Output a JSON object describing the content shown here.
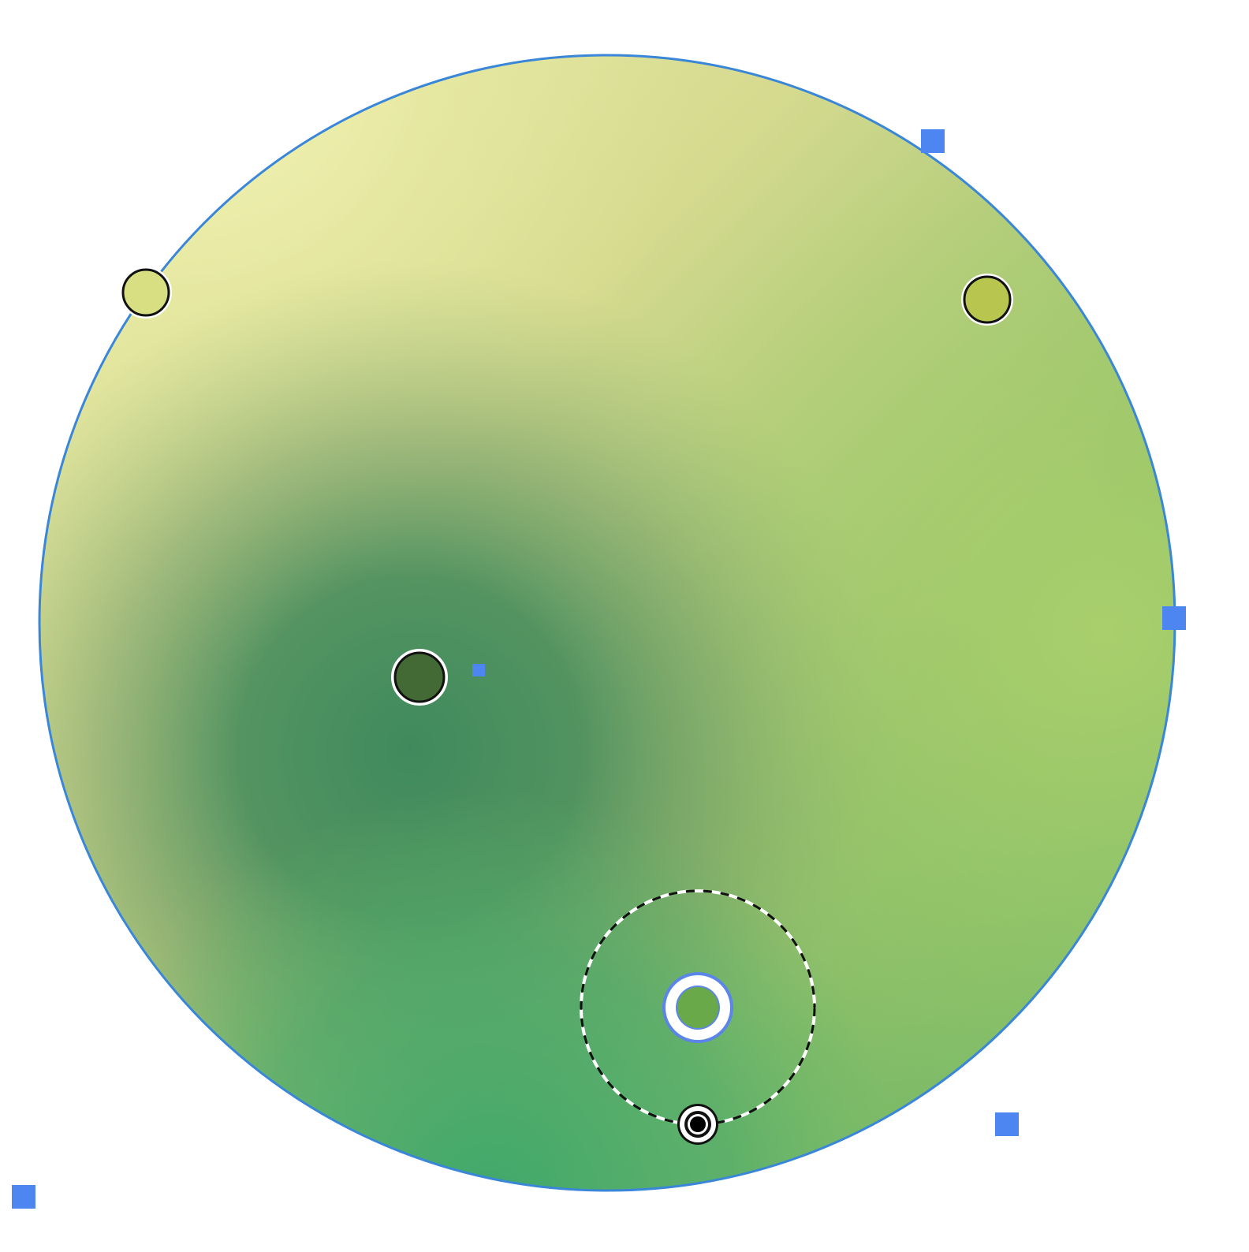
{
  "canvas": {
    "background": "#ffffff"
  },
  "shape": {
    "type": "circle",
    "outline_color": "#3a86d8",
    "gradient_colors": {
      "top_left": "#eef0ad",
      "top_right": "#d2dc80",
      "middle_dark": "#4e8d5c",
      "bottom_left": "#3f8760",
      "bottom_center": "#44a86a",
      "right": "#a6d06a"
    }
  },
  "mesh_gradient": {
    "stop_border_color": "#111111",
    "stop_outline_color": "#ffffff",
    "stops": [
      {
        "name": "stop-top-left",
        "color": "#d7df82"
      },
      {
        "name": "stop-top-right",
        "color": "#b8c64f"
      },
      {
        "name": "stop-center",
        "color": "#436a35"
      },
      {
        "name": "stop-selected",
        "color": "#6aa94a",
        "selected": true
      }
    ],
    "selection_ring_color": "#5b86e8"
  },
  "transform_handles": {
    "color": "#4d86f0",
    "icon": "square-handle-icon"
  },
  "radius_control": {
    "style": "dashed",
    "color": "#111111",
    "handle_icon": "target-handle-icon"
  }
}
